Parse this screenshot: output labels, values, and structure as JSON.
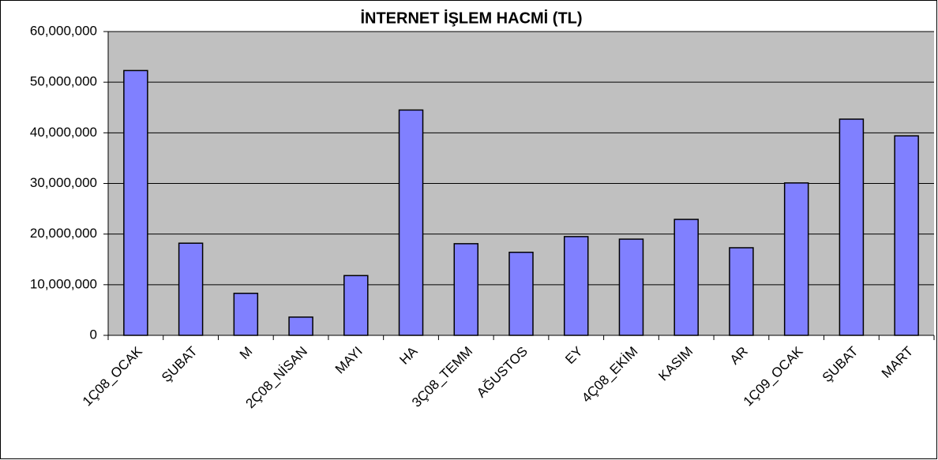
{
  "chart_data": {
    "type": "bar",
    "title": "İNTERNET İŞLEM HACMİ (TL)",
    "categories": [
      "1Ç08_OCAK",
      "ŞUBAT",
      "M",
      "2Ç08_NİSAN",
      "MAYI",
      "HA",
      "3Ç08_TEMM",
      "AĞUSTOS",
      "EY",
      "4Ç08_EKİM",
      "KASIM",
      "AR",
      "1Ç09_OCAK",
      "ŞUBAT",
      "MART"
    ],
    "values": [
      52300000,
      18200000,
      8300000,
      3600000,
      11800000,
      44500000,
      18100000,
      16400000,
      19500000,
      19000000,
      22900000,
      17300000,
      30100000,
      42700000,
      39400000
    ],
    "color": "#8080ff",
    "ylim": [
      0,
      60000000
    ],
    "yticks": [
      0,
      {
        "value": 10000000,
        "label": "10,000,000"
      },
      {
        "value": 20000000,
        "label": "20,000,000"
      },
      {
        "value": 30000000,
        "label": "30,000,000"
      },
      {
        "value": 40000000,
        "label": "40,000,000"
      },
      {
        "value": 50000000,
        "label": "50,000,000"
      },
      {
        "value": 60000000,
        "label": "60,000,000"
      }
    ],
    "grid": true
  }
}
